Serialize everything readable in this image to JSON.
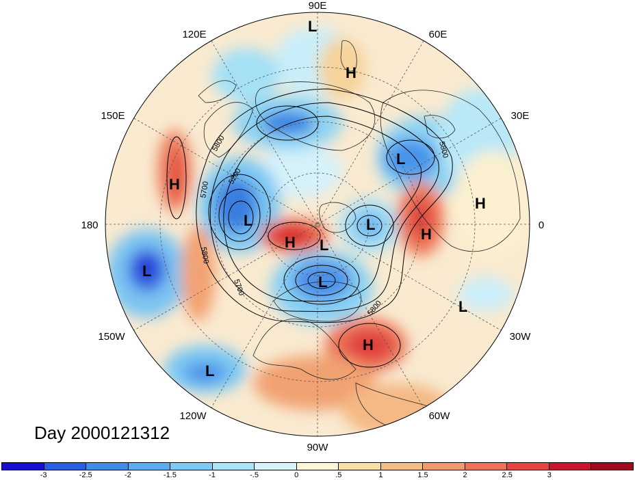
{
  "title": "Day 2000121312",
  "longitude_labels": {
    "top": "90E",
    "top_right": "60E",
    "right_upper": "30E",
    "right": "0",
    "right_lower": "30W",
    "bottom_right": "60W",
    "bottom": "90W",
    "bottom_left": "120W",
    "left_lower": "150W",
    "left": "180",
    "left_upper": "150E",
    "top_left": "120E"
  },
  "pressure_centers": [
    {
      "type": "L",
      "name": "center-l-top"
    },
    {
      "type": "H",
      "name": "center-h-upper"
    },
    {
      "type": "L",
      "name": "center-l-europe"
    },
    {
      "type": "H",
      "name": "center-h-africa"
    },
    {
      "type": "H",
      "name": "center-h-atlantic-east"
    },
    {
      "type": "L",
      "name": "center-l-arctic"
    },
    {
      "type": "H",
      "name": "center-h-pacific-west"
    },
    {
      "type": "L",
      "name": "center-l-siberia"
    },
    {
      "type": "H",
      "name": "center-h-pole"
    },
    {
      "type": "L",
      "name": "center-l-pole"
    },
    {
      "type": "L",
      "name": "center-l-canada"
    },
    {
      "type": "L",
      "name": "center-l-pacific"
    },
    {
      "type": "L",
      "name": "center-l-atlantic"
    },
    {
      "type": "H",
      "name": "center-h-atlantic"
    },
    {
      "type": "L",
      "name": "center-l-pacific-south"
    }
  ],
  "contour_labels": [
    "5800",
    "5700",
    "5200",
    "5800",
    "5700",
    "5800",
    "5800"
  ],
  "colorbar": {
    "colors": [
      "#1a0fd0",
      "#2a5ee0",
      "#3f8ce8",
      "#5aaef0",
      "#7ccbf6",
      "#a9e4f9",
      "#d8f4fb",
      "#fdf6d6",
      "#f8dfa5",
      "#f4bd84",
      "#f19a6c",
      "#ec7357",
      "#e44540",
      "#c8162c",
      "#a0091e"
    ],
    "tick_labels": [
      "-3",
      "-2.5",
      "-2",
      "-1.5",
      "-1",
      "-.5",
      "0",
      ".5",
      "1",
      "1.5",
      "2",
      "2.5",
      "3"
    ]
  }
}
